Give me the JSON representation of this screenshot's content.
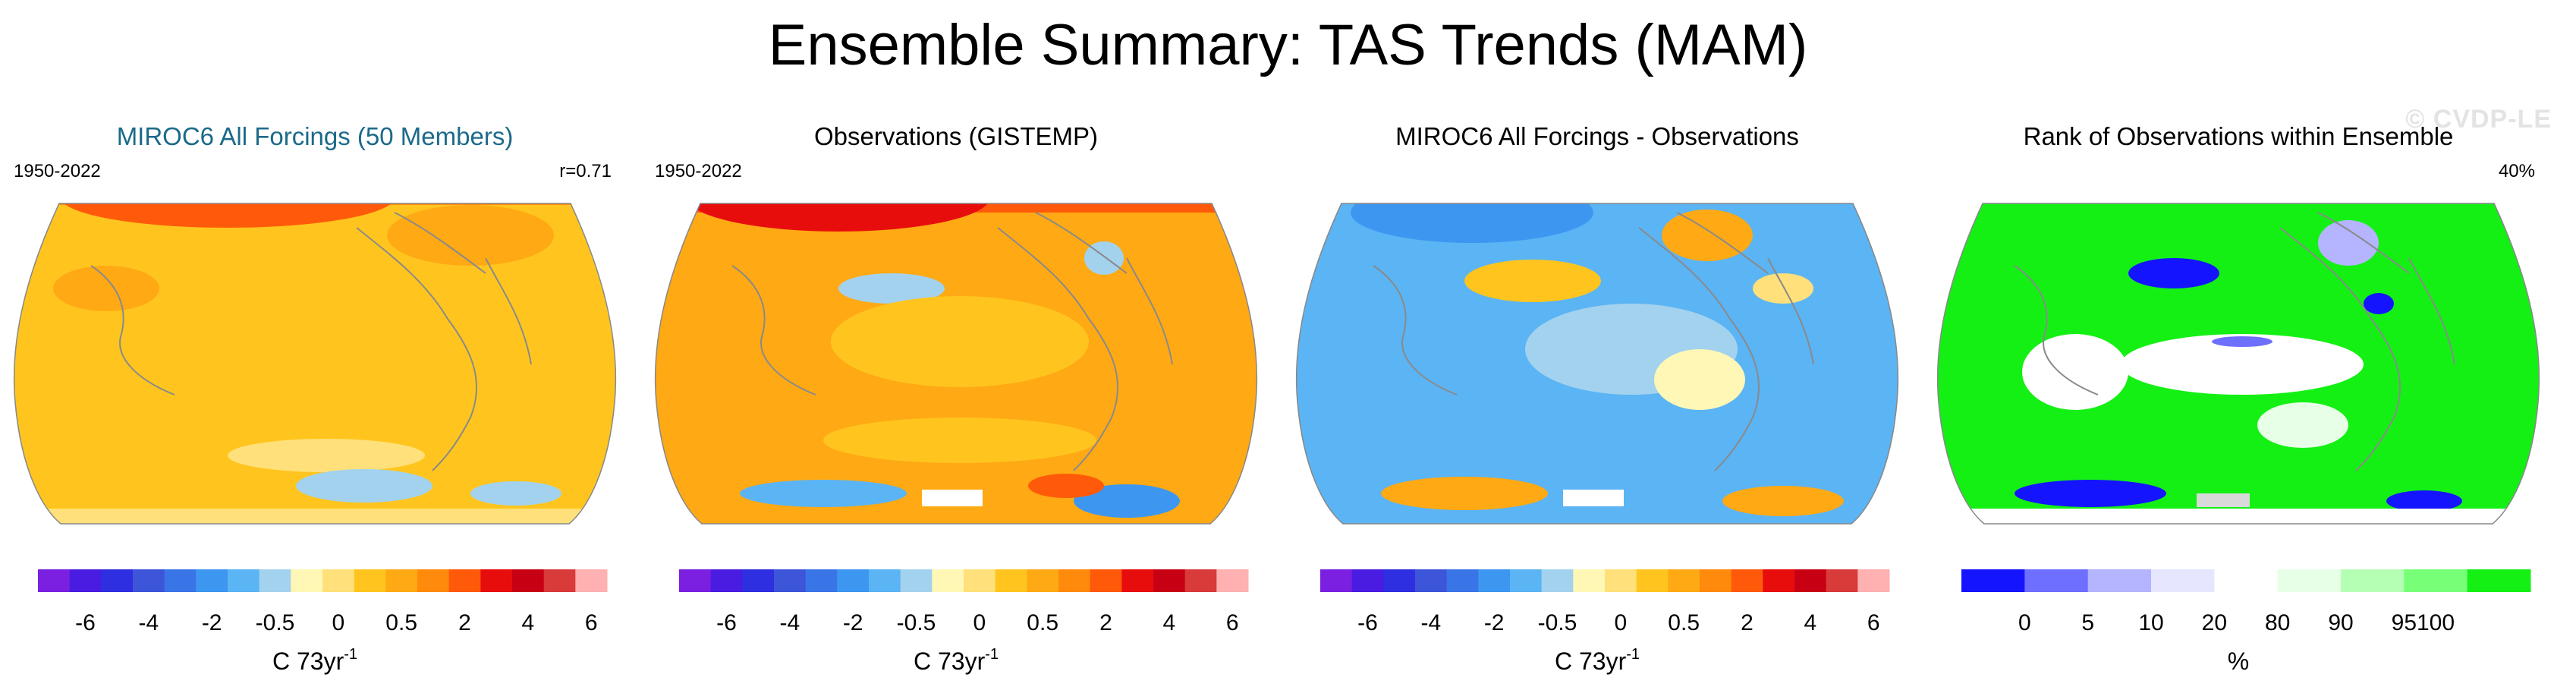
{
  "figure": {
    "title": "Ensemble Summary: TAS Trends (MAM)",
    "watermark": "© CVDP-LE"
  },
  "colors": {
    "trend_scale": [
      "#7b20e0",
      "#4a1be0",
      "#2d2fe0",
      "#3d55d8",
      "#3a75e8",
      "#3d97f0",
      "#5bb4f4",
      "#a3d2ee",
      "#fff7b5",
      "#ffe07a",
      "#ffc51e",
      "#ffa914",
      "#ff8a0c",
      "#ff5a0a",
      "#e80d0d",
      "#c80014",
      "#d93a3a",
      "#ffb0b0"
    ],
    "rank_scale": [
      "#1414ff",
      "#6e6eff",
      "#b4b4ff",
      "#e6e6ff",
      "#ffffff",
      "#e6ffe6",
      "#b4ffb4",
      "#78ff78",
      "#14f014"
    ],
    "land_outline": "#8a8a8a"
  },
  "panels": [
    {
      "title": "MIROC6 All Forcings (50 Members)",
      "period": "1950-2022",
      "stat": "r=0.71",
      "colorbar": {
        "ticks": [
          "-6",
          "-4",
          "-2",
          "-0.5",
          "0",
          "0.5",
          "2",
          "4",
          "6"
        ],
        "unit": "C 73yr",
        "unit_exp": "-1"
      }
    },
    {
      "title": "Observations (GISTEMP)",
      "period": "1950-2022",
      "stat": "",
      "colorbar": {
        "ticks": [
          "-6",
          "-4",
          "-2",
          "-0.5",
          "0",
          "0.5",
          "2",
          "4",
          "6"
        ],
        "unit": "C 73yr",
        "unit_exp": "-1"
      }
    },
    {
      "title": "MIROC6 All Forcings - Observations",
      "period": "",
      "stat": "",
      "colorbar": {
        "ticks": [
          "-6",
          "-4",
          "-2",
          "-0.5",
          "0",
          "0.5",
          "2",
          "4",
          "6"
        ],
        "unit": "C 73yr",
        "unit_exp": "-1"
      }
    },
    {
      "title": "Rank of Observations within Ensemble",
      "period": "",
      "stat": "40%",
      "colorbar": {
        "ticks": [
          "0",
          "5",
          "10",
          "20",
          "80",
          "90",
          "95",
          "100"
        ],
        "unit": "%",
        "unit_exp": ""
      }
    }
  ],
  "chart_data": [
    {
      "type": "heatmap",
      "title": "MIROC6 All Forcings (50 Members)",
      "projection": "Robinson (Pacific-centered)",
      "period": "1950-2022",
      "pattern_correlation": 0.71,
      "colorbar_levels": [
        -6,
        -4,
        -2,
        -0.5,
        0,
        0.5,
        2,
        4,
        6
      ],
      "units": "C 73yr-1",
      "dominant_range": [
        0.5,
        2
      ]
    },
    {
      "type": "heatmap",
      "title": "Observations (GISTEMP)",
      "projection": "Robinson (Pacific-centered)",
      "period": "1950-2022",
      "colorbar_levels": [
        -6,
        -4,
        -2,
        -0.5,
        0,
        0.5,
        2,
        4,
        6
      ],
      "units": "C 73yr-1",
      "dominant_range": [
        0.5,
        4
      ]
    },
    {
      "type": "heatmap",
      "title": "MIROC6 All Forcings - Observations",
      "projection": "Robinson (Pacific-centered)",
      "colorbar_levels": [
        -6,
        -4,
        -2,
        -0.5,
        0,
        0.5,
        2,
        4,
        6
      ],
      "units": "C 73yr-1",
      "dominant_range": [
        -2,
        0
      ]
    },
    {
      "type": "heatmap",
      "title": "Rank of Observations within Ensemble",
      "projection": "Robinson (Pacific-centered)",
      "colorbar_levels": [
        0,
        5,
        10,
        20,
        80,
        90,
        95,
        100
      ],
      "units": "%",
      "area_fraction_label": "40%"
    }
  ]
}
